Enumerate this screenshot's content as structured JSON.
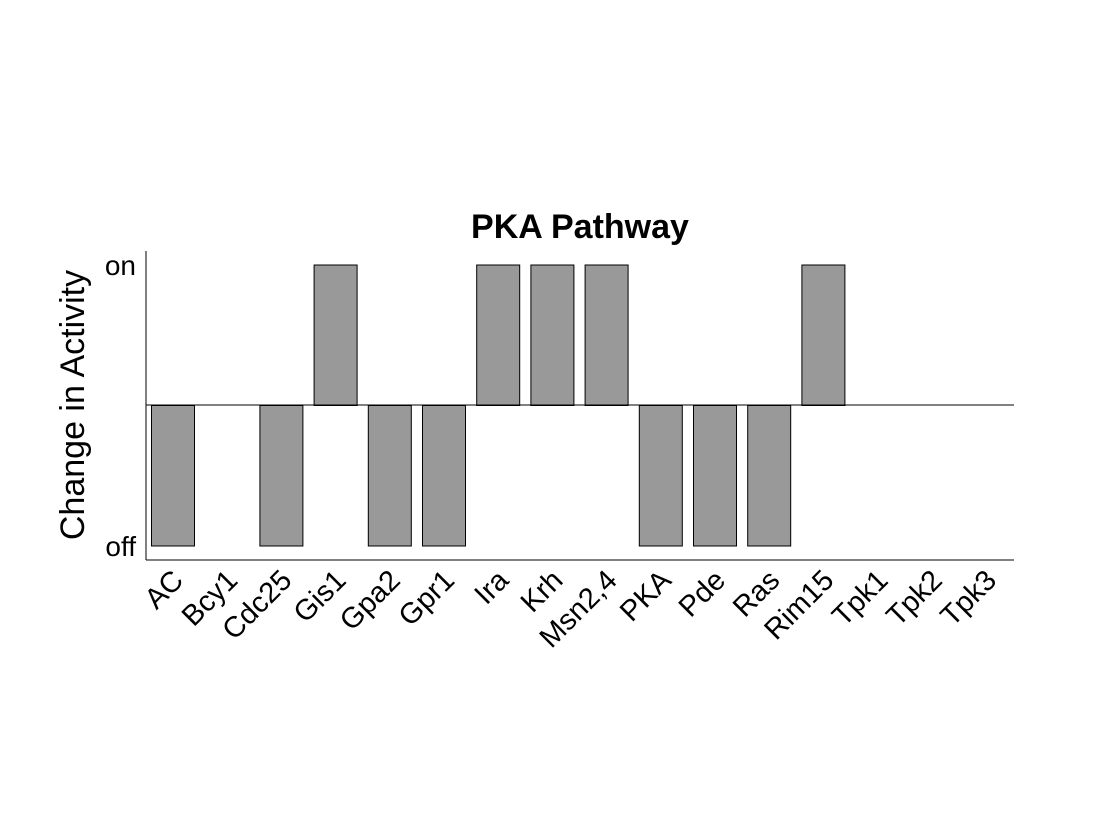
{
  "chart_data": {
    "type": "bar",
    "title": "PKA Pathway",
    "xlabel": "",
    "ylabel": "Change in Activity",
    "y_ticks": [
      "off",
      "on"
    ],
    "ylim": [
      -1,
      1
    ],
    "categories": [
      "AC",
      "Bcy1",
      "Cdc25",
      "Gis1",
      "Gpa2",
      "Gpr1",
      "Ira",
      "Krh",
      "Msn2,4",
      "PKA",
      "Pde",
      "Ras",
      "Rim15",
      "Tpk1",
      "Tpk2",
      "Tpk3"
    ],
    "values": [
      -1,
      0,
      -1,
      1,
      -1,
      -1,
      1,
      1,
      1,
      -1,
      -1,
      -1,
      1,
      0,
      0,
      0
    ],
    "bar_color": "#999999",
    "grid": false,
    "legend": "none"
  }
}
